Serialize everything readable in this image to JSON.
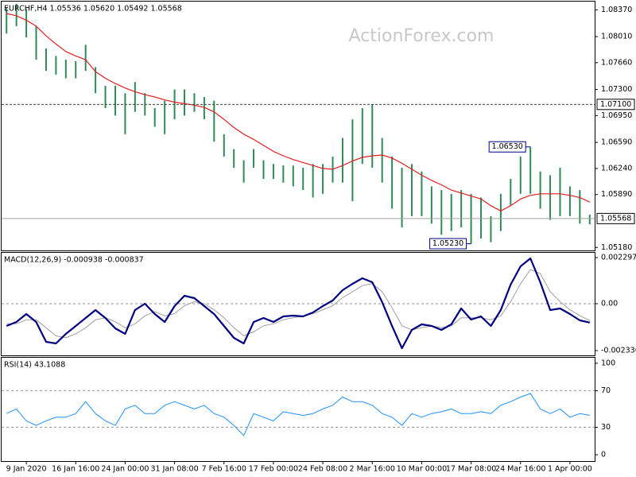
{
  "chart_data": [
    {
      "type": "range",
      "title": "EURCHF,H4  1.05536 1.05620 1.05492 1.05568",
      "watermark": "ActionForex.com",
      "color": "#2e8b57",
      "high": [
        1.084,
        1.0845,
        1.0838,
        1.0815,
        1.0785,
        1.0775,
        1.077,
        1.0768,
        1.079,
        1.076,
        1.0735,
        1.0735,
        1.0725,
        1.074,
        1.0725,
        1.0705,
        1.0715,
        1.073,
        1.073,
        1.0725,
        1.072,
        1.0715,
        1.067,
        1.065,
        1.0635,
        1.065,
        1.0635,
        1.063,
        1.0628,
        1.0628,
        1.0625,
        1.063,
        1.063,
        1.064,
        1.0665,
        1.069,
        1.0705,
        1.071,
        1.0665,
        1.064,
        1.0625,
        1.063,
        1.062,
        1.06,
        1.0595,
        1.059,
        1.0595,
        1.059,
        1.0585,
        1.056,
        1.059,
        1.061,
        1.064,
        1.0653,
        1.062,
        1.0615,
        1.0625,
        1.06,
        1.0595,
        1.0562
      ],
      "low": [
        1.0805,
        1.0815,
        1.08,
        1.077,
        1.0755,
        1.075,
        1.0745,
        1.0745,
        1.0755,
        1.0725,
        1.0705,
        1.0695,
        1.067,
        1.07,
        1.0695,
        1.068,
        1.067,
        1.069,
        1.0695,
        1.07,
        1.069,
        1.066,
        1.064,
        1.0625,
        1.0605,
        1.0625,
        1.061,
        1.061,
        1.0605,
        1.06,
        1.0595,
        1.0585,
        1.059,
        1.0605,
        1.0605,
        1.058,
        1.063,
        1.0625,
        1.0605,
        1.057,
        1.0545,
        1.056,
        1.056,
        1.055,
        1.0535,
        1.054,
        1.0545,
        1.0523,
        1.053,
        1.0525,
        1.054,
        1.0575,
        1.059,
        1.059,
        1.057,
        1.0555,
        1.056,
        1.056,
        1.055,
        1.0549
      ],
      "lines": [
        {
          "color": "#e02020",
          "width": 1.2,
          "values": [
            1.0832,
            1.0829,
            1.0823,
            1.0815,
            1.0802,
            1.0791,
            1.0781,
            1.0775,
            1.077,
            1.0754,
            1.0745,
            1.0738,
            1.0732,
            1.0727,
            1.0723,
            1.072,
            1.0716,
            1.0713,
            1.0711,
            1.0709,
            1.0706,
            1.07,
            1.069,
            1.0679,
            1.067,
            1.0663,
            1.0655,
            1.0647,
            1.0641,
            1.0636,
            1.0632,
            1.0628,
            1.0624,
            1.0623,
            1.0628,
            1.0634,
            1.0639,
            1.0641,
            1.0642,
            1.0638,
            1.0631,
            1.0623,
            1.0615,
            1.0608,
            1.0602,
            1.0595,
            1.0591,
            1.0587,
            1.0583,
            1.0574,
            1.0567,
            1.0574,
            1.0583,
            1.0588,
            1.059,
            1.059,
            1.059,
            1.0588,
            1.0585,
            1.0579
          ]
        }
      ],
      "ylim": [
        1.0514,
        1.0848
      ],
      "yticks": [
        {
          "value": 1.0837,
          "label": "1.08370"
        },
        {
          "value": 1.0801,
          "label": "1.08010"
        },
        {
          "value": 1.0766,
          "label": "1.07660"
        },
        {
          "value": 1.073,
          "label": "1.07300"
        },
        {
          "value": 1.0695,
          "label": "1.06950"
        },
        {
          "value": 1.0659,
          "label": "1.06590"
        },
        {
          "value": 1.0624,
          "label": "1.06240"
        },
        {
          "value": 1.0589,
          "label": "1.05890"
        },
        {
          "value": 1.0518,
          "label": "1.05180"
        }
      ],
      "reference_lines": [
        {
          "value": 1.071,
          "label": "1.07100",
          "style": "dashed"
        },
        {
          "value": 1.05568,
          "label": "1.05568",
          "style": "solid"
        }
      ],
      "annotations": [
        {
          "value": 1.0653,
          "label": "1.06530"
        },
        {
          "value": 1.0523,
          "label": "1.05230"
        }
      ]
    },
    {
      "type": "line",
      "title": "MACD(12,26,9) -0.000938 -0.000837",
      "series": [
        {
          "color": "#000080",
          "width": 2.2,
          "values": [
            -0.001109,
            -0.000911,
            -0.000515,
            -0.000911,
            -0.001901,
            -0.00198,
            -0.001505,
            -0.001109,
            -0.000713,
            -0.000317,
            -0.000713,
            -0.001228,
            -0.001505,
            -0.000317,
            0,
            -0.000515,
            -0.000911,
            -0.000119,
            0.000396,
            0.000277,
            -0.000119,
            -0.000515,
            -0.001109,
            -0.001703,
            -0.00198,
            -0.000911,
            -0.000713,
            -0.000911,
            -0.000634,
            -0.000594,
            -0.000634,
            -0.000436,
            -0.000119,
            0.000158,
            0.000673,
            0.00099,
            0.001267,
            0.001069,
            7.9e-05,
            -0.001109,
            -0.002218,
            -0.001307,
            -0.00103,
            -0.001109,
            -0.001307,
            -0.00103,
            -0.000238,
            -0.000792,
            -0.000634,
            -0.001109,
            -0.000317,
            0.00095,
            0.001861,
            0.002257,
            0.001069,
            -0.000317,
            -0.000238,
            -0.000515,
            -0.000832,
            -0.000938
          ]
        },
        {
          "color": "#a0a0a0",
          "width": 1,
          "values": [
            -0.001,
            -0.001,
            -0.0008,
            -0.0008,
            -0.0012,
            -0.0016,
            -0.0017,
            -0.0015,
            -0.0012,
            -0.0008,
            -0.0007,
            -0.0009,
            -0.0012,
            -0.001,
            -0.0006,
            -0.0004,
            -0.0006,
            -0.0005,
            -0.0001,
            0.0001,
            0,
            -0.0003,
            -0.0007,
            -0.0012,
            -0.0016,
            -0.0014,
            -0.0011,
            -0.001,
            -0.0008,
            -0.0007,
            -0.0006,
            -0.0005,
            -0.0003,
            -0.0001,
            0.0003,
            0.0006,
            0.0009,
            0.001,
            0.0006,
            -0.0002,
            -0.0011,
            -0.0013,
            -0.0012,
            -0.0011,
            -0.0012,
            -0.0011,
            -0.0007,
            -0.0007,
            -0.0007,
            -0.0008,
            -0.0006,
            0.0001,
            0.001,
            0.0017,
            0.0015,
            0.0006,
            0.0001,
            -0.0003,
            -0.0006,
            -0.000837
          ]
        }
      ],
      "ylim": [
        -0.002574,
        0.002535
      ],
      "yticks": [
        0.002297,
        {
          "value": 0,
          "label": "0.00"
        },
        -0.002336
      ],
      "levels": [
        0
      ]
    },
    {
      "type": "line",
      "title": "RSI(14) 43.1088",
      "series": [
        {
          "color": "#1e90ff",
          "width": 1,
          "values": [
            45,
            50,
            37,
            32,
            37,
            41,
            41,
            45,
            58,
            45,
            37,
            32,
            50,
            54,
            45,
            45,
            54,
            58,
            54,
            50,
            54,
            45,
            41,
            32,
            21,
            45,
            41,
            37,
            47,
            45,
            43,
            45,
            50,
            54,
            63,
            58,
            58,
            54,
            45,
            41,
            32,
            45,
            41,
            45,
            47,
            50,
            45,
            45,
            47,
            45,
            54,
            58,
            63,
            67,
            50,
            45,
            50,
            41,
            45,
            43.1088
          ]
        }
      ],
      "ylim": [
        -7,
        106
      ],
      "yticks": [
        100,
        70,
        30,
        0
      ],
      "levels": [
        70,
        30
      ],
      "categories": [
        null,
        null,
        "9 Jan 2020",
        null,
        null,
        null,
        null,
        "16 Jan 16:00",
        null,
        null,
        null,
        null,
        "24 Jan 00:00",
        null,
        null,
        null,
        null,
        "31 Jan 08:00",
        null,
        null,
        null,
        null,
        "7 Feb 16:00",
        null,
        null,
        null,
        null,
        "17 Feb 00:00",
        null,
        null,
        null,
        null,
        "24 Feb 08:00",
        null,
        null,
        null,
        null,
        "2 Mar 16:00",
        null,
        null,
        null,
        null,
        "10 Mar 00:00",
        null,
        null,
        null,
        null,
        "17 Mar 08:00",
        null,
        null,
        null,
        null,
        "24 Mar 16:00",
        null,
        null,
        null,
        null,
        "1 Apr 00:00",
        null,
        null
      ]
    }
  ]
}
